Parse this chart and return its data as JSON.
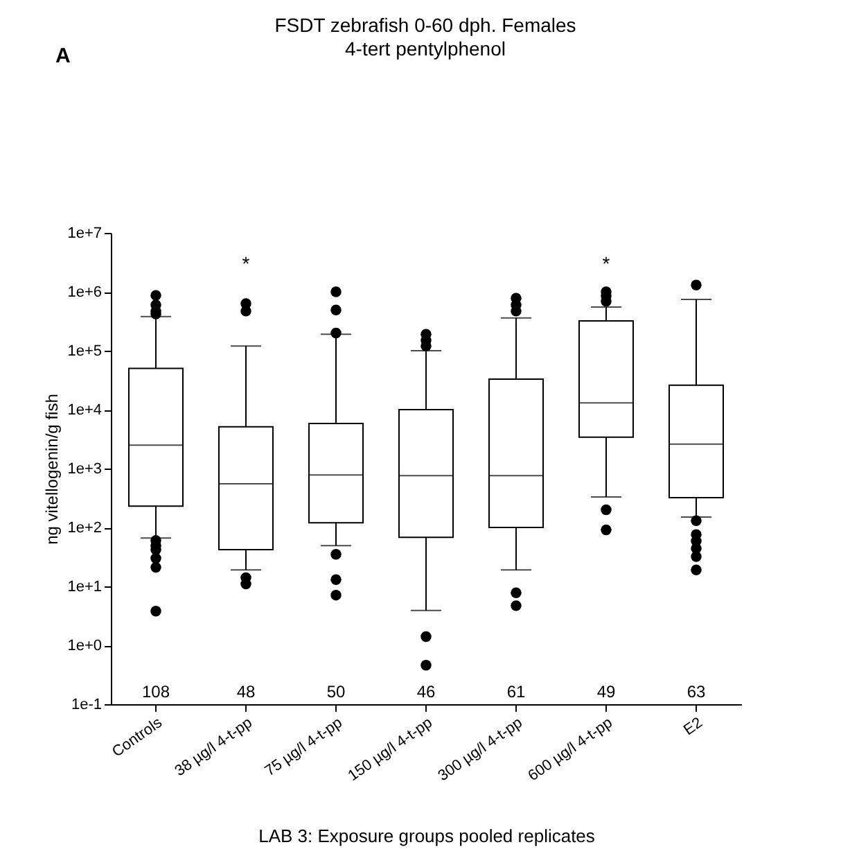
{
  "chart_data": {
    "type": "box",
    "title": "FSDT zebrafish 0-60 dph. Females",
    "subtitle": "4-tert pentylphenol",
    "xlabel": "LAB 3: Exposure groups pooled replicates",
    "ylabel": "ng vitellogenin/g fish",
    "categories": [
      "Controls",
      "38 µg/l 4-t-pp",
      "75 µg/l 4-t-pp",
      "150 µg/l 4-t-pp",
      "300 µg/l 4-t-pp",
      "600 µg/l 4-t-pp",
      "E2"
    ],
    "boxes": [
      {
        "low": 66,
        "q1": 230,
        "median": 2500,
        "q3": 50000,
        "high": 380000,
        "outliers": [
          870000,
          600000,
          470000,
          420000,
          60,
          49,
          42,
          30,
          21,
          3.8
        ]
      },
      {
        "low": 19,
        "q1": 42,
        "median": 550,
        "q3": 5100,
        "high": 120000,
        "outliers": [
          630000,
          470000,
          14,
          11
        ]
      },
      {
        "low": 49,
        "q1": 120,
        "median": 780,
        "q3": 5800,
        "high": 190000,
        "outliers": [
          1000000,
          490000,
          200000,
          35,
          13,
          7.1
        ]
      },
      {
        "low": 3.9,
        "q1": 68,
        "median": 760,
        "q3": 10000,
        "high": 100000,
        "outliers": [
          190000,
          150000,
          120000,
          1.4,
          0.46
        ]
      },
      {
        "low": 19,
        "q1": 100,
        "median": 760,
        "q3": 33000,
        "high": 360000,
        "outliers": [
          780000,
          600000,
          470000,
          7.8,
          4.7
        ]
      },
      {
        "low": 330,
        "q1": 3400,
        "median": 13000,
        "q3": 320000,
        "high": 550000,
        "outliers": [
          1000000,
          850000,
          690000,
          200,
          91
        ]
      },
      {
        "low": 150,
        "q1": 320,
        "median": 2600,
        "q3": 26000,
        "high": 740000,
        "outliers": [
          1300000,
          130,
          76,
          59,
          44,
          32,
          19
        ]
      }
    ],
    "log": true,
    "ylim": [
      0.1,
      10000000
    ],
    "yticks": [
      {
        "value": 0.1,
        "label": "1e-1"
      },
      {
        "value": 1,
        "label": "1e+0"
      },
      {
        "value": 10,
        "label": "1e+1"
      },
      {
        "value": 100,
        "label": "1e+2"
      },
      {
        "value": 1000,
        "label": "1e+3"
      },
      {
        "value": 10000,
        "label": "1e+4"
      },
      {
        "value": 100000,
        "label": "1e+5"
      },
      {
        "value": 1000000,
        "label": "1e+6"
      },
      {
        "value": 10000000,
        "label": "1e+7"
      }
    ],
    "grid": false,
    "marker": "circle",
    "annotations": [
      "A",
      "108",
      "48",
      "50",
      "46",
      "61",
      "49",
      "63",
      "*",
      "*"
    ]
  }
}
